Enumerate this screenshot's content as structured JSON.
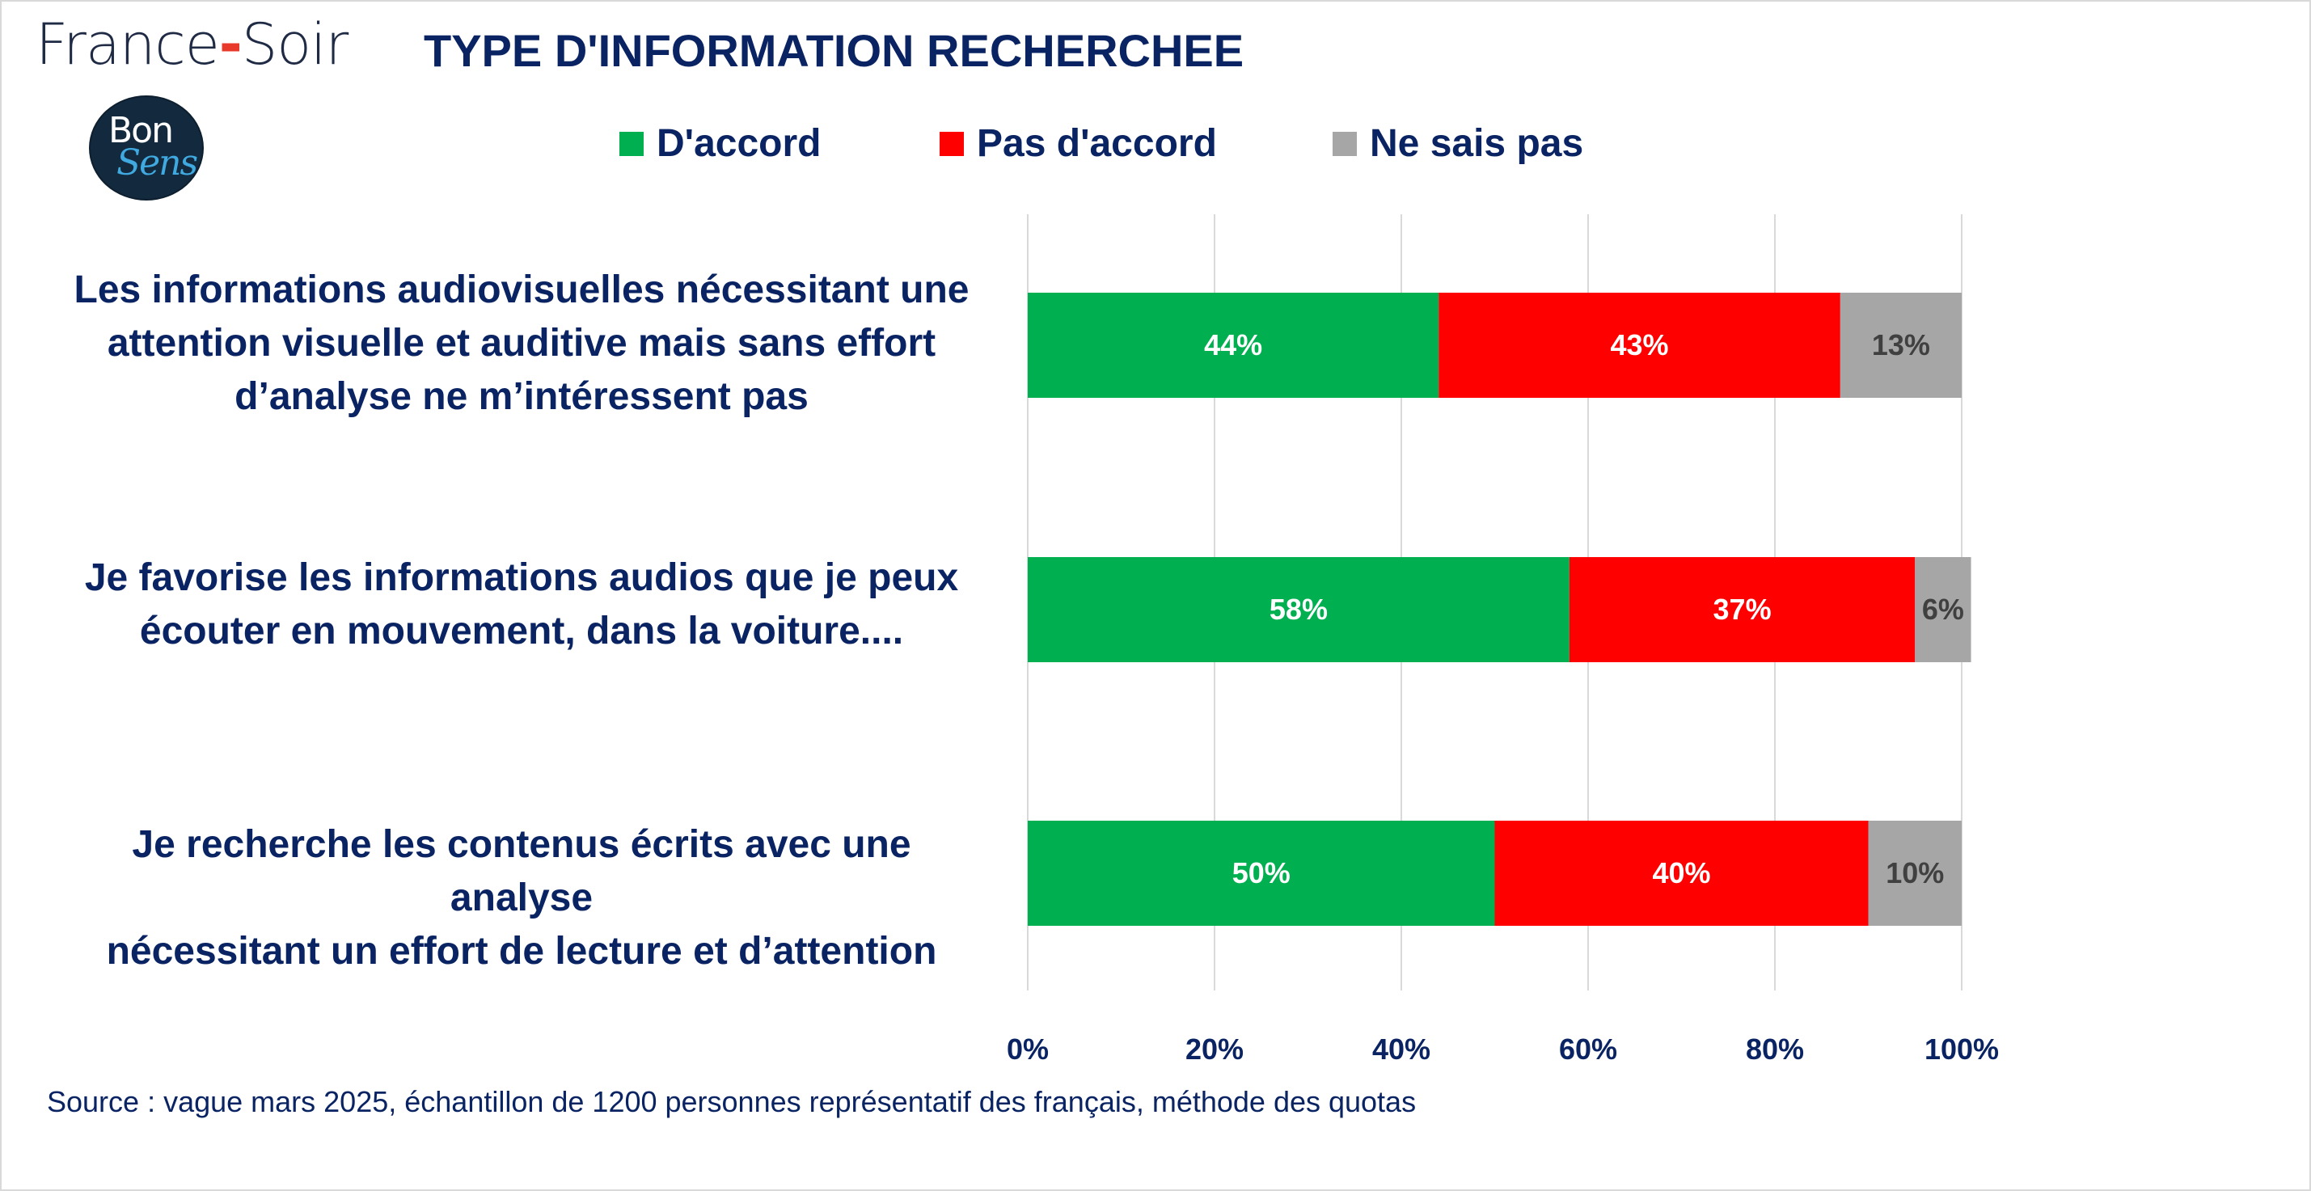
{
  "brand": {
    "name_left": "France",
    "name_dash": "-",
    "name_right": "Soir",
    "logo_top": "Bon",
    "logo_bottom": "Sens"
  },
  "title": "TYPE D'INFORMATION RECHERCHEE",
  "source": "Source : vague mars 2025, échantillon de 1200 personnes représentatif des français, méthode des quotas",
  "colors": {
    "accord": "#00b050",
    "pas_accord": "#ff0000",
    "ne_sais_pas": "#a6a6a6",
    "text": "#0a2463",
    "grid": "#d9d9d9"
  },
  "chart_data": {
    "type": "bar",
    "orientation": "horizontal",
    "stacked": true,
    "title": "TYPE D'INFORMATION RECHERCHEE",
    "categories": [
      "Les informations audiovisuelles nécessitant une attention visuelle et auditive mais sans effort d’analyse ne m’intéressent pas",
      "Je favorise les informations audios que je peux écouter en mouvement, dans la voiture....",
      "Je recherche les contenus écrits avec une analyse nécessitant un effort de lecture et d’attention"
    ],
    "category_lines": [
      [
        "Les informations audiovisuelles nécessitant une",
        "attention visuelle et auditive mais sans effort",
        "d’analyse ne m’intéressent pas"
      ],
      [
        "Je favorise les informations audios que je peux",
        "écouter en mouvement, dans la voiture...."
      ],
      [
        "Je recherche les contenus écrits avec une analyse",
        "nécessitant un effort de lecture et d’attention"
      ]
    ],
    "series": [
      {
        "name": "D'accord",
        "color": "#00b050",
        "values": [
          44,
          58,
          50
        ],
        "labels": [
          "44%",
          "58%",
          "50%"
        ]
      },
      {
        "name": "Pas d'accord",
        "color": "#ff0000",
        "values": [
          43,
          37,
          40
        ],
        "labels": [
          "43%",
          "37%",
          "40%"
        ]
      },
      {
        "name": "Ne sais pas",
        "color": "#a6a6a6",
        "values": [
          13,
          6,
          10
        ],
        "labels": [
          "13%",
          "6%",
          "10%"
        ]
      }
    ],
    "xlim": [
      0,
      100
    ],
    "xticks": [
      "0%",
      "20%",
      "40%",
      "60%",
      "80%",
      "100%"
    ],
    "grid": true,
    "legend": "top"
  }
}
